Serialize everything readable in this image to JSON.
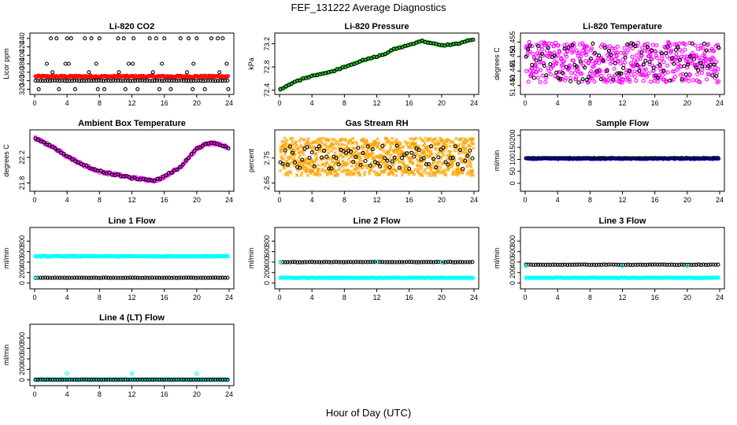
{
  "title": "FEF_131222  Average Diagnostics",
  "xlabel": "Hour of Day (UTC)",
  "colors": {
    "black": "#000000",
    "red": "#ff0000",
    "green": "#22cc22",
    "magenta": "#ff00ff",
    "orange": "#ffa500",
    "blue": "#0000ff",
    "cyan": "#00ffff"
  },
  "chart_data": [
    {
      "type": "scatter",
      "title": "Li-820 CO2",
      "ylabel": "Licor ppm",
      "xlim": [
        0,
        24
      ],
      "ylim": [
        315,
        445
      ],
      "yticks": [
        "320",
        "340",
        "360",
        "380",
        "400",
        "420",
        "440"
      ],
      "xticks": [
        "0",
        "4",
        "8",
        "12",
        "16",
        "20",
        "24"
      ],
      "series": [
        {
          "name": "red",
          "color": "red",
          "kind": "flat",
          "value": 350,
          "noise": 2
        },
        {
          "name": "black-340",
          "color": "black",
          "kind": "flat",
          "value": 340,
          "noise": 0.5,
          "step": 0.3
        },
        {
          "name": "black-440",
          "color": "black",
          "kind": "sparse",
          "value": 440,
          "hours": [
            2,
            2.7,
            4,
            4.5,
            6.2,
            7,
            8,
            10.3,
            11,
            12.2,
            14.2,
            15,
            16,
            18,
            19,
            20,
            21.8,
            22.6,
            23.2
          ]
        },
        {
          "name": "black-380",
          "color": "black",
          "kind": "sparse",
          "value": 380,
          "hours": [
            1.5,
            3.8,
            4.2,
            7.6,
            11.6,
            12.1,
            15.7,
            19.6,
            23.7
          ]
        },
        {
          "name": "black-360",
          "color": "black",
          "kind": "sparse",
          "value": 360,
          "hours": [
            2.2,
            6.7,
            10.4,
            14.6,
            18.8,
            22.8
          ]
        },
        {
          "name": "black-320",
          "color": "black",
          "kind": "sparse",
          "value": 320,
          "hours": [
            0.5,
            3,
            5,
            7.8,
            8.6,
            11.2,
            12.7,
            15.4,
            16.8,
            19.5,
            21,
            23.9
          ]
        }
      ]
    },
    {
      "type": "scatter",
      "title": "Li-820 Pressure",
      "ylabel": "kPa",
      "xlim": [
        0,
        24
      ],
      "ylim": [
        72.38,
        73.33
      ],
      "yticks": [
        "72.4",
        "72.8",
        "73.2"
      ],
      "xticks": [
        "0",
        "4",
        "8",
        "12",
        "16",
        "20",
        "24"
      ],
      "series": [
        {
          "name": "green",
          "color": "green",
          "kind": "curve",
          "knots": [
            [
              0,
              72.4
            ],
            [
              2,
              72.55
            ],
            [
              4,
              72.65
            ],
            [
              6,
              72.7
            ],
            [
              8,
              72.8
            ],
            [
              10,
              72.9
            ],
            [
              12,
              72.98
            ],
            [
              13,
              73.02
            ],
            [
              14,
              73.1
            ],
            [
              16,
              73.18
            ],
            [
              17.5,
              73.25
            ],
            [
              19,
              73.2
            ],
            [
              20,
              73.17
            ],
            [
              22,
              73.2
            ],
            [
              24,
              73.28
            ]
          ],
          "noise": 0.008
        },
        {
          "name": "black",
          "color": "black",
          "kind": "curve",
          "knots": [
            [
              0,
              72.4
            ],
            [
              2,
              72.55
            ],
            [
              4,
              72.65
            ],
            [
              6,
              72.7
            ],
            [
              8,
              72.8
            ],
            [
              10,
              72.9
            ],
            [
              12,
              72.98
            ],
            [
              13,
              73.02
            ],
            [
              14,
              73.1
            ],
            [
              16,
              73.18
            ],
            [
              17.5,
              73.25
            ],
            [
              19,
              73.2
            ],
            [
              20,
              73.17
            ],
            [
              22,
              73.2
            ],
            [
              24,
              73.28
            ]
          ],
          "noise": 0.012,
          "step": 0.35
        }
      ]
    },
    {
      "type": "scatter",
      "title": "Li-820 Temperature",
      "ylabel": "degrees C",
      "xlim": [
        0,
        24
      ],
      "ylim": [
        51.438,
        51.457
      ],
      "yticks": [
        "51.440",
        "51.445",
        "51.450",
        "51.455"
      ],
      "xticks": [
        "0",
        "4",
        "8",
        "12",
        "16",
        "20",
        "24"
      ],
      "series": [
        {
          "name": "magenta",
          "color": "magenta",
          "kind": "band",
          "low": 51.441,
          "high": 51.455,
          "step": 0.05
        },
        {
          "name": "black",
          "color": "black",
          "kind": "band",
          "low": 51.441,
          "high": 51.455,
          "step": 0.25
        }
      ]
    },
    {
      "type": "scatter",
      "title": "Ambient Box Temperature",
      "ylabel": "degrees C",
      "xlim": [
        0,
        24
      ],
      "ylim": [
        21.72,
        22.58
      ],
      "yticks": [
        "21.8",
        "22.2"
      ],
      "xticks": [
        "0",
        "4",
        "8",
        "12",
        "16",
        "20",
        "24"
      ],
      "series": [
        {
          "name": "magenta",
          "color": "magenta",
          "kind": "curve",
          "knots": [
            [
              0,
              22.5
            ],
            [
              2,
              22.38
            ],
            [
              4,
              22.22
            ],
            [
              6,
              22.08
            ],
            [
              8,
              21.98
            ],
            [
              10,
              21.93
            ],
            [
              12,
              21.88
            ],
            [
              14,
              21.85
            ],
            [
              15,
              21.84
            ],
            [
              16,
              21.9
            ],
            [
              18,
              22.05
            ],
            [
              19,
              22.2
            ],
            [
              20,
              22.33
            ],
            [
              21,
              22.4
            ],
            [
              22,
              22.42
            ],
            [
              24,
              22.35
            ]
          ],
          "noise": 0.02
        },
        {
          "name": "black",
          "color": "black",
          "kind": "curve",
          "knots": [
            [
              0,
              22.5
            ],
            [
              2,
              22.38
            ],
            [
              4,
              22.22
            ],
            [
              6,
              22.08
            ],
            [
              8,
              21.98
            ],
            [
              10,
              21.93
            ],
            [
              12,
              21.88
            ],
            [
              14,
              21.85
            ],
            [
              15,
              21.84
            ],
            [
              16,
              21.9
            ],
            [
              18,
              22.05
            ],
            [
              19,
              22.2
            ],
            [
              20,
              22.33
            ],
            [
              21,
              22.4
            ],
            [
              22,
              22.42
            ],
            [
              24,
              22.35
            ]
          ],
          "noise": 0.015,
          "step": 0.35
        }
      ]
    },
    {
      "type": "scatter",
      "title": "Gas Stream RH",
      "ylabel": "percent",
      "xlim": [
        0,
        24
      ],
      "ylim": [
        2.63,
        2.85
      ],
      "yticks": [
        "2.65",
        "2.75"
      ],
      "xticks": [
        "0",
        "4",
        "8",
        "12",
        "16",
        "20",
        "24"
      ],
      "series": [
        {
          "name": "orange",
          "color": "orange",
          "kind": "band",
          "low": 2.68,
          "high": 2.83,
          "step": 0.025,
          "marker": "x"
        },
        {
          "name": "black",
          "color": "black",
          "kind": "band",
          "low": 2.7,
          "high": 2.8,
          "step": 0.3
        }
      ]
    },
    {
      "type": "scatter",
      "title": "Sample Flow",
      "ylabel": "ml/min",
      "xlim": [
        0,
        24
      ],
      "ylim": [
        -20,
        210
      ],
      "yticks": [
        "0",
        "50",
        "100",
        "150",
        "200"
      ],
      "xticks": [
        "0",
        "4",
        "8",
        "12",
        "16",
        "20",
        "24"
      ],
      "series": [
        {
          "name": "blue",
          "color": "blue",
          "kind": "flat",
          "value": 103,
          "noise": 2
        },
        {
          "name": "black",
          "color": "black",
          "kind": "flat",
          "value": 105,
          "noise": 1,
          "step": 0.3
        }
      ]
    },
    {
      "type": "scatter",
      "title": "Line 1 Flow",
      "ylabel": "ml/min",
      "xlim": [
        0,
        24
      ],
      "ylim": [
        -50,
        1000
      ],
      "yticks": [
        "0",
        "200",
        "400",
        "600",
        "800"
      ],
      "xticks": [
        "0",
        "4",
        "8",
        "12",
        "16",
        "20",
        "24"
      ],
      "series": [
        {
          "name": "cyan",
          "color": "cyan",
          "kind": "flat",
          "value": 510,
          "noise": 8
        },
        {
          "name": "black",
          "color": "black",
          "kind": "flat",
          "value": 100,
          "noise": 3,
          "step": 0.3
        },
        {
          "name": "cyan-low",
          "color": "cyan",
          "kind": "sparse",
          "value": 110,
          "hours": [
            0.1
          ]
        }
      ]
    },
    {
      "type": "scatter",
      "title": "Line 2 Flow",
      "ylabel": "ml/min",
      "xlim": [
        0,
        24
      ],
      "ylim": [
        -50,
        1000
      ],
      "yticks": [
        "0",
        "200",
        "400",
        "600",
        "800"
      ],
      "xticks": [
        "0",
        "4",
        "8",
        "12",
        "16",
        "20",
        "24"
      ],
      "series": [
        {
          "name": "cyan",
          "color": "cyan",
          "kind": "flat",
          "value": 100,
          "noise": 5
        },
        {
          "name": "black",
          "color": "black",
          "kind": "flat",
          "value": 400,
          "noise": 4,
          "step": 0.3
        },
        {
          "name": "cyan-high",
          "color": "cyan",
          "kind": "sparse",
          "value": 400,
          "hours": [
            0.1,
            12,
            20
          ]
        }
      ]
    },
    {
      "type": "scatter",
      "title": "Line 3 Flow",
      "ylabel": "ml/min",
      "xlim": [
        0,
        24
      ],
      "ylim": [
        -50,
        1000
      ],
      "yticks": [
        "0",
        "200",
        "400",
        "600",
        "800"
      ],
      "xticks": [
        "0",
        "4",
        "8",
        "12",
        "16",
        "20",
        "24"
      ],
      "series": [
        {
          "name": "cyan",
          "color": "cyan",
          "kind": "flat",
          "value": 100,
          "noise": 5
        },
        {
          "name": "black",
          "color": "black",
          "kind": "flat",
          "value": 350,
          "noise": 4,
          "step": 0.3
        },
        {
          "name": "cyan-high",
          "color": "cyan",
          "kind": "sparse",
          "value": 320,
          "hours": [
            0.1,
            12,
            20
          ]
        }
      ]
    },
    {
      "type": "scatter",
      "title": "Line 4 (LT) Flow",
      "ylabel": "ml/min",
      "xlim": [
        0,
        24
      ],
      "ylim": [
        -50,
        1000
      ],
      "yticks": [
        "0",
        "200",
        "400",
        "600",
        "800"
      ],
      "xticks": [
        "0",
        "4",
        "8",
        "12",
        "16",
        "20",
        "24"
      ],
      "series": [
        {
          "name": "cyan",
          "color": "cyan",
          "kind": "flat",
          "value": 5,
          "noise": 3
        },
        {
          "name": "black",
          "color": "black",
          "kind": "flat",
          "value": 5,
          "noise": 2,
          "step": 0.3
        },
        {
          "name": "cyan-spikes",
          "color": "cyan",
          "kind": "sparse",
          "value": 120,
          "hours": [
            4,
            12,
            20
          ]
        }
      ]
    }
  ]
}
